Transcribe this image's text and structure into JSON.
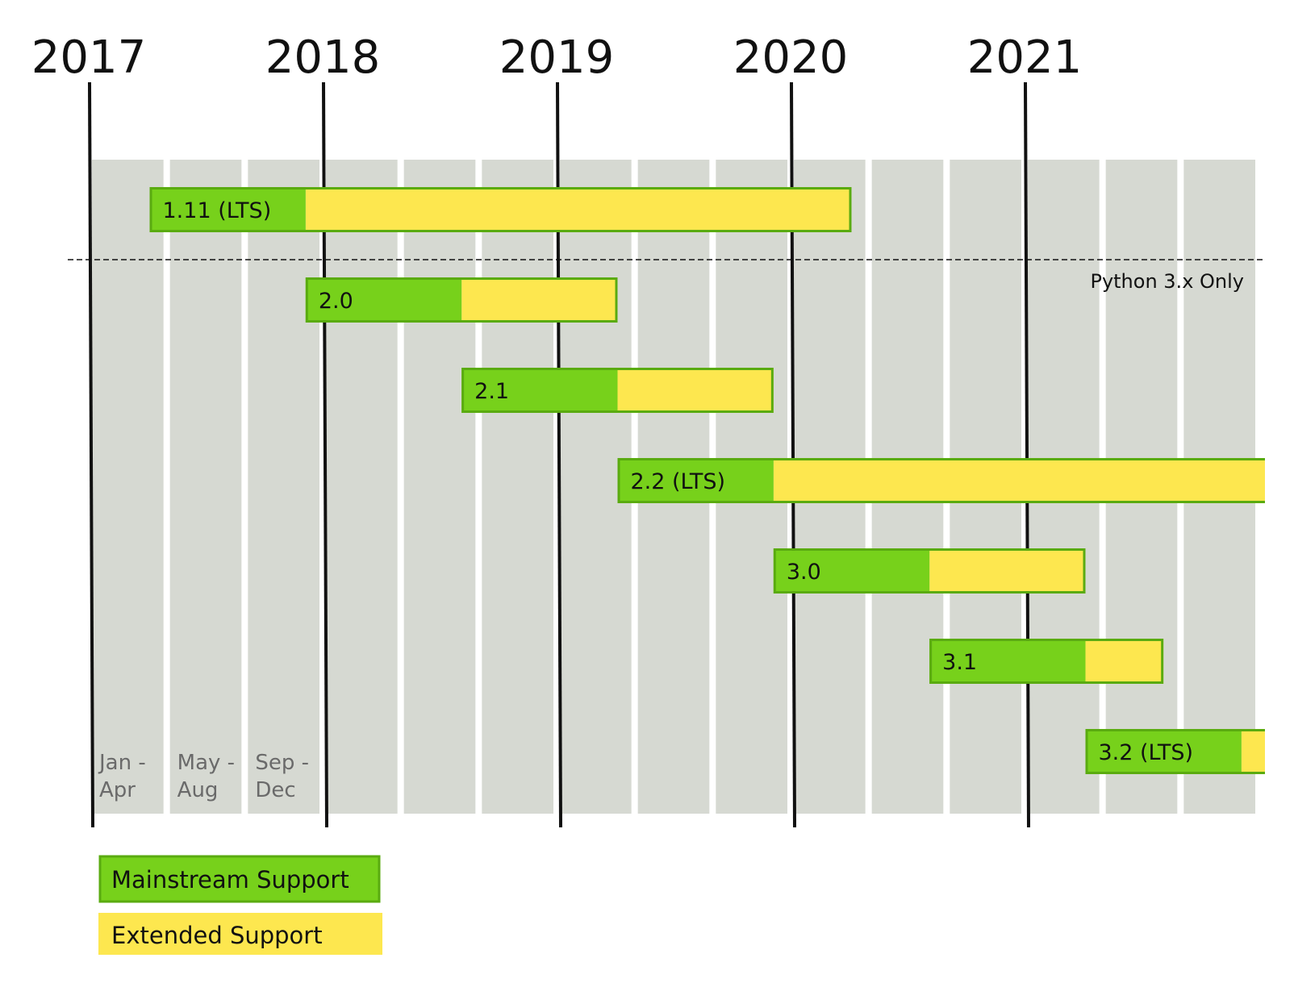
{
  "chart_data": {
    "type": "gantt",
    "colors": {
      "mainstream": "#77d11b",
      "mainstream_border": "#5aab10",
      "extended": "#fde74f",
      "period_column": "#d6d9d2",
      "axis": "#111111"
    },
    "years": [
      "2017",
      "2018",
      "2019",
      "2020",
      "2021"
    ],
    "period_labels": [
      {
        "line1": "Jan -",
        "line2": "Apr"
      },
      {
        "line1": "May -",
        "line2": "Aug"
      },
      {
        "line1": "Sep -",
        "line2": "Dec"
      }
    ],
    "separator_note": "Python 3.x Only",
    "releases": [
      {
        "label": "1.11 (LTS)",
        "mainstream_start": "2017-04",
        "mainstream_end": "2017-12",
        "extended_end": "2020-04",
        "cut_off": false
      },
      {
        "label": "2.0",
        "mainstream_start": "2017-12",
        "mainstream_end": "2018-08",
        "extended_end": "2019-04",
        "cut_off": false
      },
      {
        "label": "2.1",
        "mainstream_start": "2018-08",
        "mainstream_end": "2019-04",
        "extended_end": "2019-12",
        "cut_off": false
      },
      {
        "label": "2.2 (LTS)",
        "mainstream_start": "2019-04",
        "mainstream_end": "2019-12",
        "extended_end": "2022-04",
        "cut_off": true
      },
      {
        "label": "3.0",
        "mainstream_start": "2019-12",
        "mainstream_end": "2020-08",
        "extended_end": "2021-04",
        "cut_off": false
      },
      {
        "label": "3.1",
        "mainstream_start": "2020-08",
        "mainstream_end": "2021-04",
        "extended_end": "2021-08",
        "cut_off": false
      },
      {
        "label": "3.2 (LTS)",
        "mainstream_start": "2021-04",
        "mainstream_end": "2021-12",
        "extended_end": "2024-04",
        "cut_off": true
      }
    ],
    "legend": [
      {
        "label": "Mainstream Support",
        "series": "mainstream"
      },
      {
        "label": "Extended Support",
        "series": "extended"
      }
    ]
  }
}
